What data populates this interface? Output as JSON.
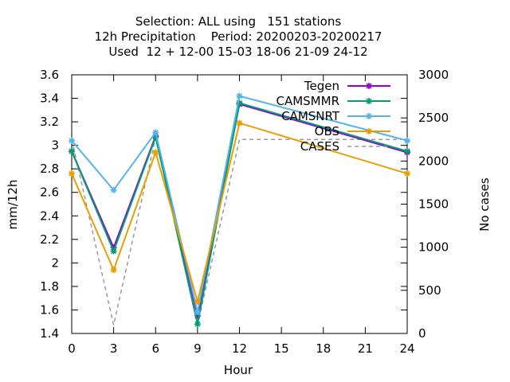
{
  "chart_data": {
    "type": "line",
    "title_lines": [
      "Selection: ALL using   151 stations",
      "12h Precipitation    Period: 20200203-20200217",
      "Used  12 + 12-00 15-03 18-06 21-09 24-12"
    ],
    "xlabel": "Hour",
    "ylabel": "mm/12h",
    "y2label": "No cases",
    "xlim": [
      0,
      24
    ],
    "ylim": [
      1.4,
      3.6
    ],
    "y2lim": [
      0,
      3000
    ],
    "x_ticks": [
      0,
      3,
      6,
      9,
      12,
      15,
      18,
      21,
      24
    ],
    "y_ticks": [
      "1.4",
      "1.6",
      "1.8",
      "2",
      "2.2",
      "2.4",
      "2.6",
      "2.8",
      "3",
      "3.2",
      "3.4",
      "3.6"
    ],
    "y2_ticks": [
      "0",
      "500",
      "1000",
      "1500",
      "2000",
      "2500",
      "3000"
    ],
    "grid": false,
    "legend_position": "top-right",
    "series": [
      {
        "name": "Tegen",
        "color": "#9400d3",
        "axis": "y",
        "x": [
          0,
          3,
          6,
          9,
          12,
          24
        ],
        "values": [
          2.95,
          2.13,
          3.08,
          1.55,
          3.35,
          2.94
        ]
      },
      {
        "name": "CAMSMMR",
        "color": "#009e73",
        "axis": "y",
        "x": [
          0,
          3,
          6,
          9,
          12,
          24
        ],
        "values": [
          2.95,
          2.1,
          3.07,
          1.48,
          3.36,
          2.95
        ]
      },
      {
        "name": "CAMSNRT",
        "color": "#56b4e9",
        "axis": "y",
        "x": [
          0,
          3,
          6,
          9,
          12,
          24
        ],
        "values": [
          3.04,
          2.62,
          3.11,
          1.58,
          3.42,
          3.04
        ]
      },
      {
        "name": "OBS",
        "color": "#e69f00",
        "axis": "y",
        "x": [
          0,
          3,
          6,
          9,
          12,
          24
        ],
        "values": [
          2.76,
          1.94,
          2.94,
          1.67,
          3.19,
          2.76
        ]
      },
      {
        "name": "CASES",
        "color": "#999999",
        "axis": "y2",
        "dashed": true,
        "x": [
          0,
          3,
          6,
          9,
          12,
          24
        ],
        "values": [
          2250,
          100,
          2270,
          100,
          2250,
          2250
        ]
      }
    ]
  }
}
